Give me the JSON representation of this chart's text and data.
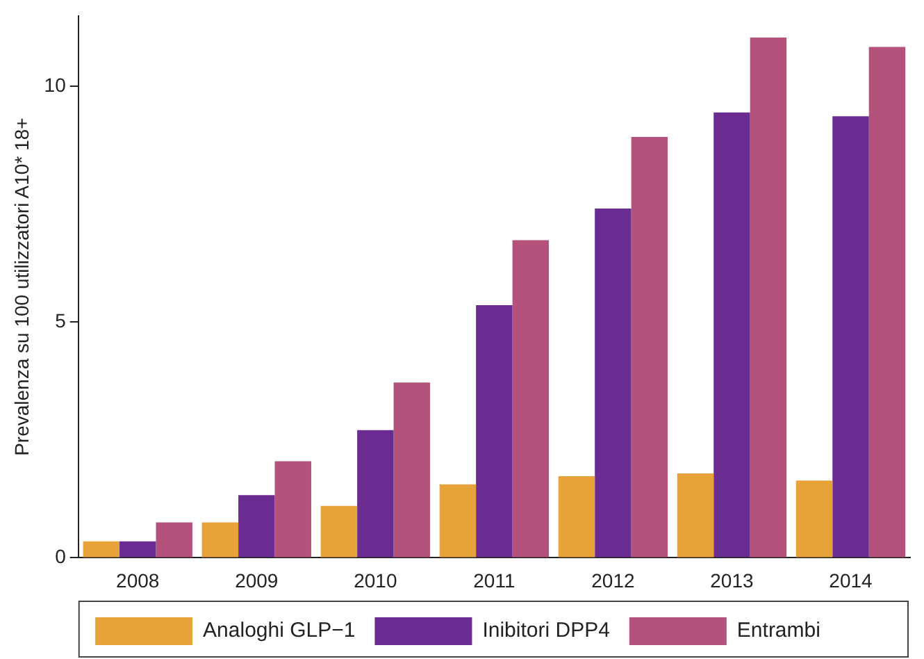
{
  "chart_data": {
    "type": "bar",
    "ylabel": "Prevalenza su 100 utilizzatori A10* 18+",
    "categories": [
      "2008",
      "2009",
      "2010",
      "2011",
      "2012",
      "2013",
      "2014"
    ],
    "series": [
      {
        "name": "Analoghi GLP−1",
        "color": "#e8a23a",
        "values": [
          0.35,
          0.75,
          1.1,
          1.56,
          1.73,
          1.79,
          1.64
        ]
      },
      {
        "name": "Inibitori DPP4",
        "color": "#6a2c91",
        "values": [
          0.35,
          1.33,
          2.71,
          5.36,
          7.41,
          9.45,
          9.37
        ]
      },
      {
        "name": "Entrambi",
        "color": "#b5527b",
        "values": [
          0.75,
          2.05,
          3.72,
          6.74,
          8.93,
          11.04,
          10.84
        ]
      }
    ],
    "ylim": [
      0,
      11.5
    ],
    "yticks": [
      0,
      5,
      10
    ],
    "grid": false,
    "legend": "bottom"
  }
}
